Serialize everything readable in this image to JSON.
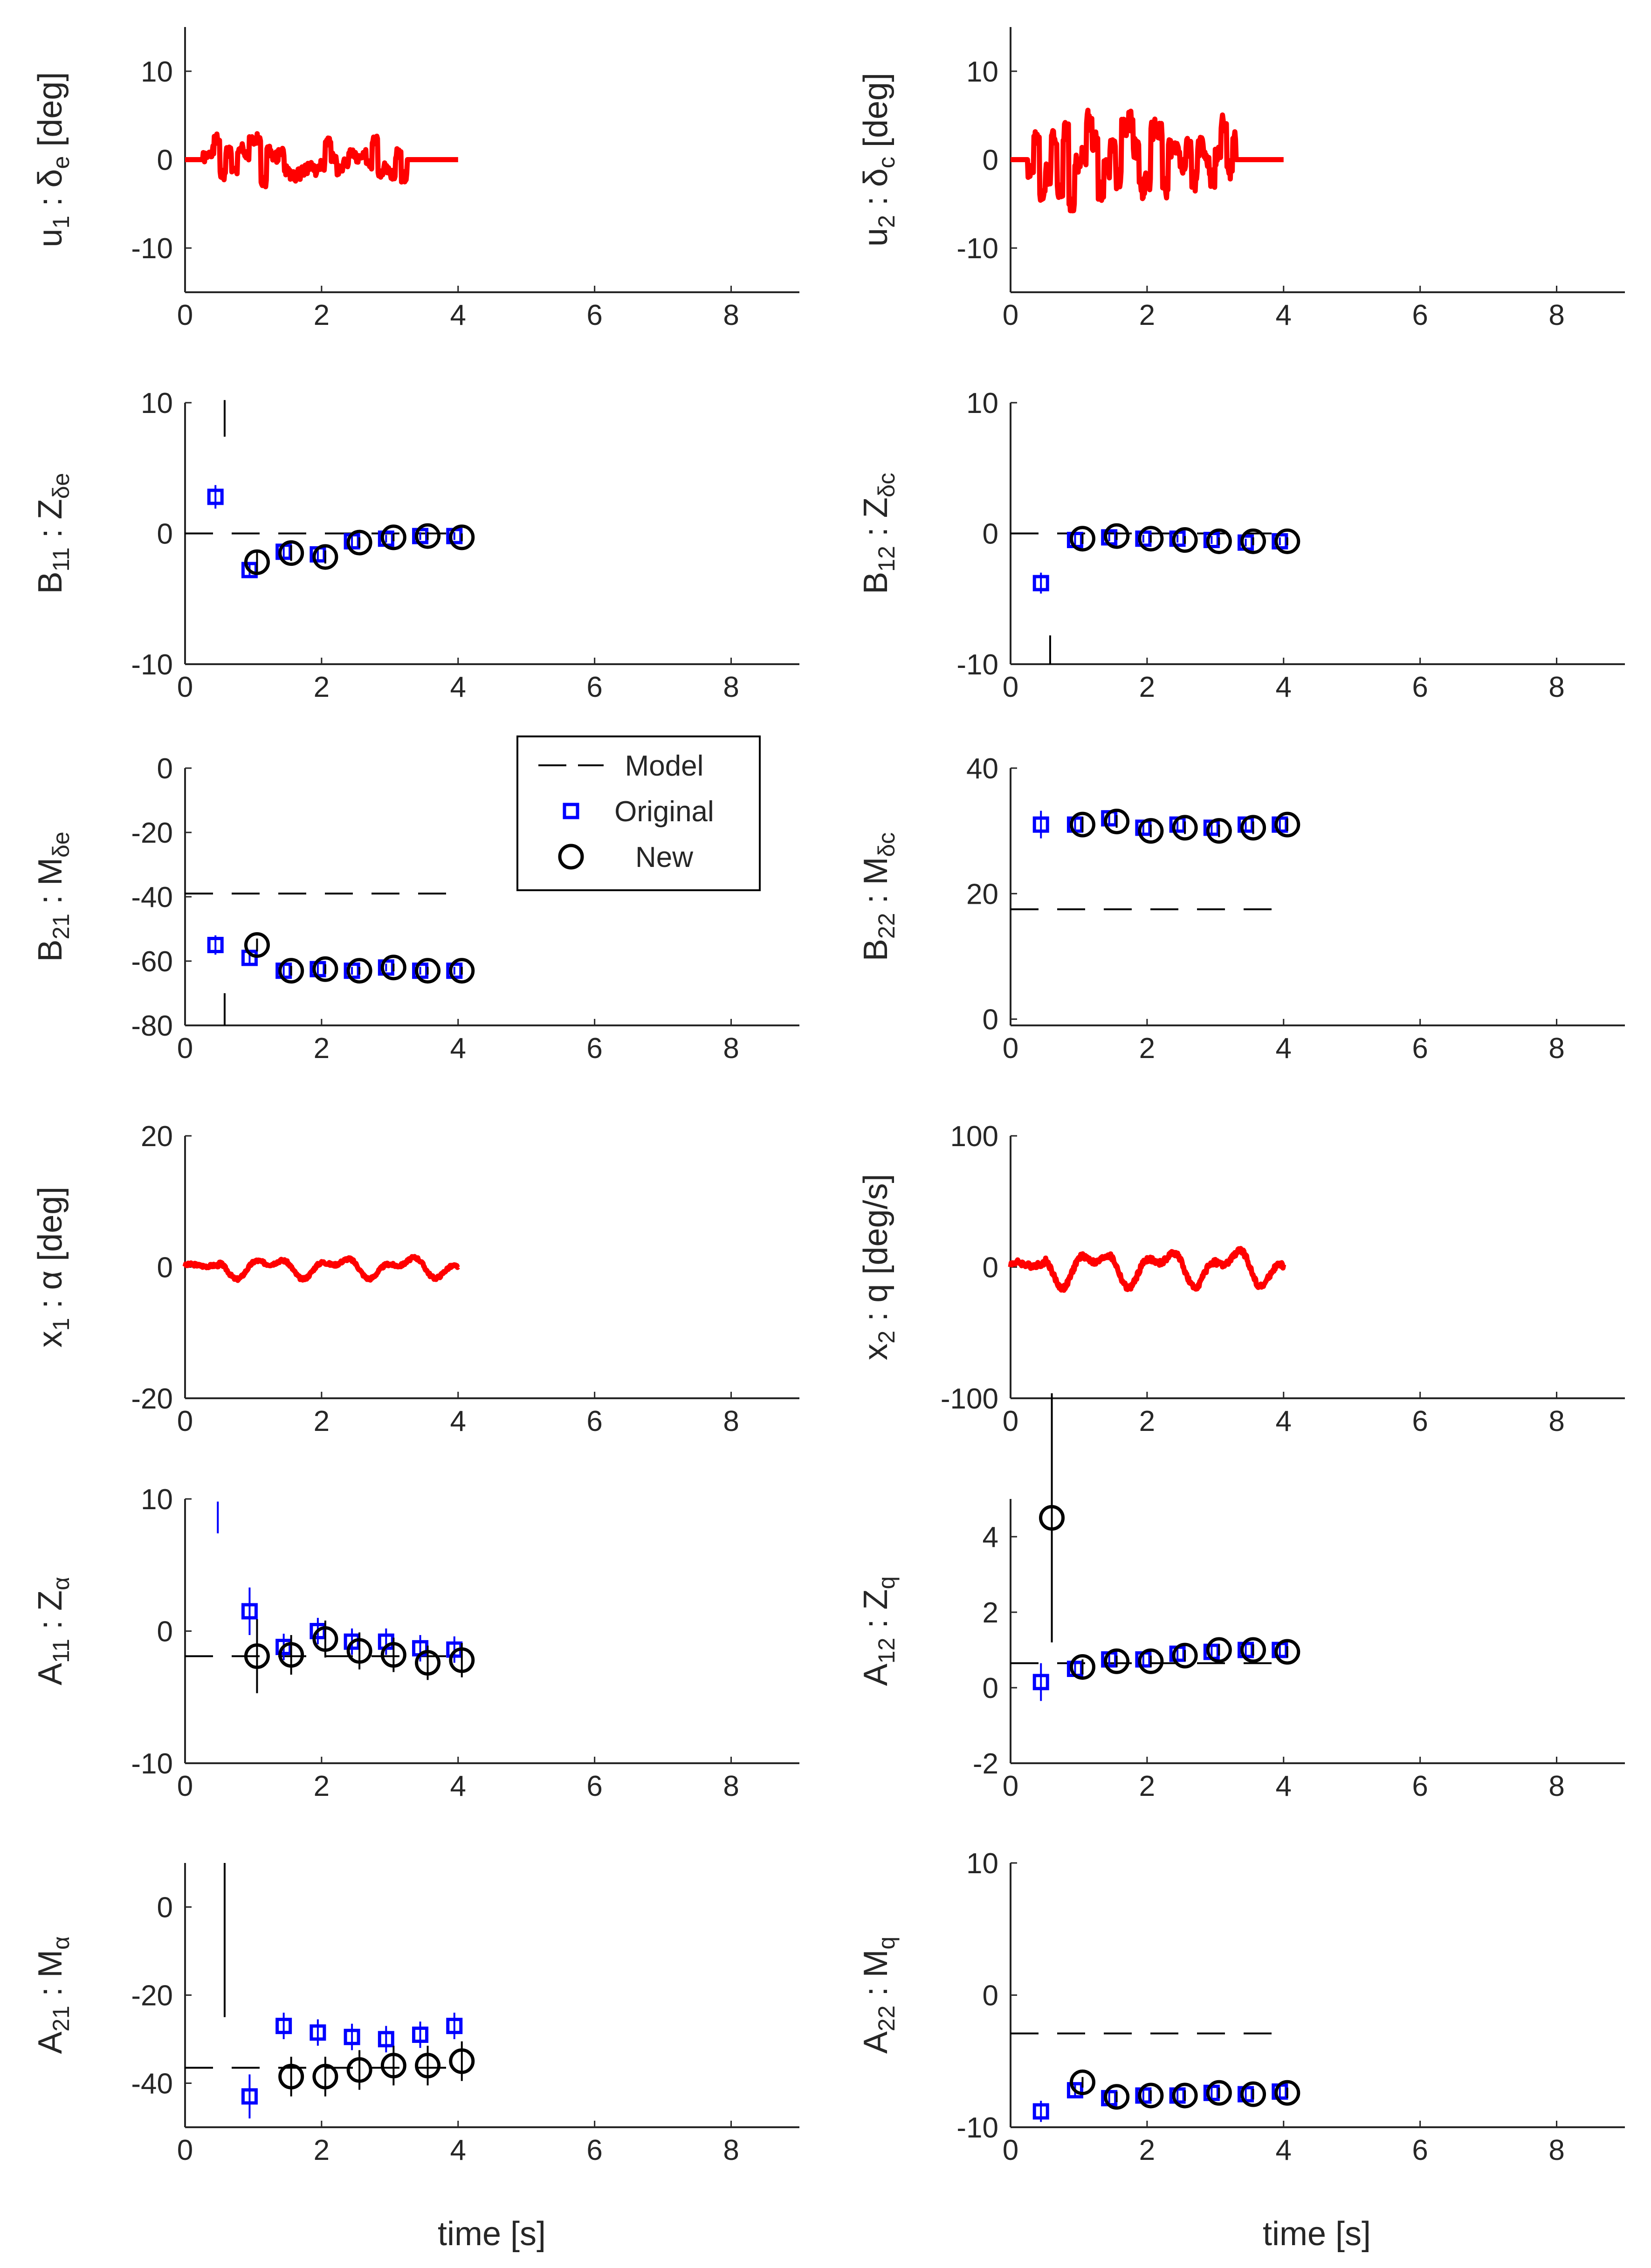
{
  "figure": {
    "xlabel": "time [s]"
  },
  "legend": {
    "items": [
      {
        "label": "Model",
        "style": "dash"
      },
      {
        "label": "Original",
        "style": "square"
      },
      {
        "label": "New",
        "style": "circle"
      }
    ]
  },
  "colors": {
    "signal": "#ff0000",
    "original": "#0000ff",
    "new": "#000000",
    "axis": "#262626"
  },
  "chart_data": [
    {
      "id": "u1",
      "type": "line",
      "ylabel": {
        "main": "u",
        "sub1": "1",
        "mid": " : δ",
        "sub2": "e",
        "tail": " [deg]"
      },
      "xlim": [
        0,
        9
      ],
      "ylim": [
        -15,
        15
      ],
      "xticks": [
        0,
        2,
        4,
        6,
        8
      ],
      "yticks": [
        -10,
        0,
        10
      ],
      "signal": {
        "t0": 0,
        "t1": 4,
        "type": "u",
        "amp": 2.5,
        "seed": 1,
        "hold_from": 3.25
      }
    },
    {
      "id": "u2",
      "type": "line",
      "ylabel": {
        "main": "u",
        "sub1": "2",
        "mid": " : δ",
        "sub2": "c",
        "tail": " [deg]"
      },
      "xlim": [
        0,
        9
      ],
      "ylim": [
        -15,
        15
      ],
      "xticks": [
        0,
        2,
        4,
        6,
        8
      ],
      "yticks": [
        -10,
        0,
        10
      ],
      "signal": {
        "t0": 0,
        "t1": 4,
        "type": "u",
        "amp": 4.8,
        "seed": 2,
        "hold_from": 3.3
      }
    },
    {
      "id": "B11",
      "type": "scatter",
      "ylabel": {
        "main": "B",
        "sub1": "11",
        "mid": " : Z",
        "sub2": "δe",
        "tail": ""
      },
      "xlim": [
        0,
        9
      ],
      "ylim": [
        -10,
        10
      ],
      "xticks": [
        0,
        2,
        4,
        6,
        8
      ],
      "yticks": [
        -10,
        0,
        10
      ],
      "model": {
        "x": [
          0,
          4
        ],
        "y": [
          0
        ]
      },
      "original": {
        "t": [
          0.5,
          1,
          1.5,
          2,
          2.5,
          3,
          3.5,
          4
        ],
        "y": [
          2.8,
          -2.8,
          -1.4,
          -1.6,
          -0.6,
          -0.4,
          -0.2,
          -0.2
        ],
        "err": [
          0.9,
          0.6,
          0.5,
          0.5,
          0.4,
          0.3,
          0.3,
          0.3
        ]
      },
      "new": {
        "t": [
          1,
          1.5,
          2,
          2.5,
          3,
          3.5,
          4
        ],
        "y": [
          -2.2,
          -1.5,
          -1.8,
          -0.7,
          -0.3,
          -0.2,
          -0.3
        ],
        "err": [
          0.9,
          0.6,
          0.5,
          0.4,
          0.3,
          0.3,
          0.3
        ]
      },
      "spikes": [
        {
          "t": 0.58,
          "y0": 7.4,
          "y1": 10.2,
          "color": "new"
        }
      ]
    },
    {
      "id": "B12",
      "type": "scatter",
      "ylabel": {
        "main": "B",
        "sub1": "12",
        "mid": " : Z",
        "sub2": "δc",
        "tail": ""
      },
      "xlim": [
        0,
        9
      ],
      "ylim": [
        -10,
        10
      ],
      "xticks": [
        0,
        2,
        4,
        6,
        8
      ],
      "yticks": [
        -10,
        0,
        10
      ],
      "model": {
        "x": [
          0,
          4
        ],
        "y": [
          0
        ]
      },
      "original": {
        "t": [
          0.5,
          1,
          1.5,
          2,
          2.5,
          3,
          3.5,
          4
        ],
        "y": [
          -3.8,
          -0.5,
          -0.3,
          -0.4,
          -0.4,
          -0.5,
          -0.7,
          -0.6
        ],
        "err": [
          0.8,
          0.4,
          0.3,
          0.3,
          0.3,
          0.3,
          0.3,
          0.3
        ]
      },
      "new": {
        "t": [
          1,
          1.5,
          2,
          2.5,
          3,
          3.5,
          4
        ],
        "y": [
          -0.4,
          -0.2,
          -0.4,
          -0.5,
          -0.6,
          -0.6,
          -0.6
        ],
        "err": [
          0.4,
          0.3,
          0.3,
          0.3,
          0.3,
          0.3,
          0.3
        ]
      },
      "spikes": [
        {
          "t": 0.58,
          "y0": -7.8,
          "y1": -10,
          "color": "new"
        }
      ]
    },
    {
      "id": "B21",
      "type": "scatter",
      "ylabel": {
        "main": "B",
        "sub1": "21",
        "mid": " : M",
        "sub2": "δe",
        "tail": ""
      },
      "xlim": [
        0,
        9
      ],
      "ylim": [
        -80,
        0
      ],
      "xticks": [
        0,
        2,
        4,
        6,
        8
      ],
      "yticks": [
        -80,
        -60,
        -40,
        -20,
        0
      ],
      "model": {
        "x": [
          0,
          4
        ],
        "y": [
          -39
        ]
      },
      "original": {
        "t": [
          0.5,
          1,
          1.5,
          2,
          2.5,
          3,
          3.5,
          4
        ],
        "y": [
          -55,
          -59,
          -63,
          -62.5,
          -63,
          -62,
          -63,
          -63
        ],
        "err": [
          3,
          2,
          1.5,
          1.5,
          1.2,
          1.2,
          1.2,
          1.2
        ]
      },
      "new": {
        "t": [
          1,
          1.5,
          2,
          2.5,
          3,
          3.5,
          4
        ],
        "y": [
          -55,
          -63,
          -62.5,
          -63,
          -62,
          -63,
          -63
        ],
        "err": [
          2,
          1.5,
          1.5,
          1.2,
          1.2,
          1.2,
          1.2
        ]
      },
      "spikes": [
        {
          "t": 0.58,
          "y0": -70,
          "y1": -80,
          "color": "new"
        }
      ]
    },
    {
      "id": "B22",
      "type": "scatter",
      "ylabel": {
        "main": "B",
        "sub1": "22",
        "mid": " : M",
        "sub2": "δc",
        "tail": ""
      },
      "xlim": [
        0,
        9
      ],
      "ylim": [
        -1,
        40
      ],
      "xticks": [
        0,
        2,
        4,
        6,
        8
      ],
      "yticks": [
        0,
        20,
        40
      ],
      "model": {
        "x": [
          0,
          4
        ],
        "y": [
          17.5
        ]
      },
      "original": {
        "t": [
          0.5,
          1,
          1.5,
          2,
          2.5,
          3,
          3.5,
          4
        ],
        "y": [
          31,
          31,
          32,
          30.5,
          31,
          30.5,
          31,
          31
        ],
        "err": [
          2.2,
          1.2,
          1,
          1,
          1,
          1,
          1,
          1
        ]
      },
      "new": {
        "t": [
          1,
          1.5,
          2,
          2.5,
          3,
          3.5,
          4
        ],
        "y": [
          31,
          31.5,
          30,
          30.5,
          30,
          30.5,
          31
        ],
        "err": [
          1.2,
          1,
          1,
          1,
          1,
          1,
          1
        ]
      },
      "spikes": []
    },
    {
      "id": "x1",
      "type": "line",
      "ylabel": {
        "main": "x",
        "sub1": "1",
        "mid": " : α [deg]",
        "sub2": "",
        "tail": ""
      },
      "xlim": [
        0,
        9
      ],
      "ylim": [
        -20,
        20
      ],
      "xticks": [
        0,
        2,
        4,
        6,
        8
      ],
      "yticks": [
        -20,
        0,
        20
      ],
      "signal": {
        "t0": 0,
        "t1": 4,
        "type": "x",
        "amp": 1.6,
        "seed": 3,
        "hold_from": 99
      }
    },
    {
      "id": "x2",
      "type": "line",
      "ylabel": {
        "main": "x",
        "sub1": "2",
        "mid": " : q [deg/s]",
        "sub2": "",
        "tail": ""
      },
      "xlim": [
        0,
        9
      ],
      "ylim": [
        -100,
        100
      ],
      "xticks": [
        0,
        2,
        4,
        6,
        8
      ],
      "yticks": [
        -100,
        0,
        100
      ],
      "signal": {
        "t0": 0,
        "t1": 4,
        "type": "x",
        "amp": 14,
        "seed": 4,
        "hold_from": 99
      }
    },
    {
      "id": "A11",
      "type": "scatter",
      "ylabel": {
        "main": "A",
        "sub1": "11",
        "mid": " : Z",
        "sub2": "α",
        "tail": ""
      },
      "xlim": [
        0,
        9
      ],
      "ylim": [
        -10,
        10
      ],
      "xticks": [
        0,
        2,
        4,
        6,
        8
      ],
      "yticks": [
        -10,
        0,
        10
      ],
      "model": {
        "x": [
          0,
          4
        ],
        "y": [
          -1.9
        ]
      },
      "original": {
        "t": [
          1,
          1.5,
          2,
          2.5,
          3,
          3.5,
          4
        ],
        "y": [
          1.5,
          -1.2,
          0,
          -0.8,
          -0.8,
          -1.3,
          -1.4
        ],
        "err": [
          1.8,
          1,
          1,
          1,
          1,
          1,
          1
        ]
      },
      "new": {
        "t": [
          1,
          1.5,
          2,
          2.5,
          3,
          3.5,
          4
        ],
        "y": [
          -1.9,
          -1.8,
          -0.6,
          -1.5,
          -1.8,
          -2.4,
          -2.2
        ],
        "err": [
          2.8,
          1.5,
          1.4,
          1.4,
          1.3,
          1.3,
          1.3
        ]
      },
      "spikes": [
        {
          "t": 0.48,
          "y0": 7.4,
          "y1": 9.8,
          "color": "original"
        }
      ]
    },
    {
      "id": "A12",
      "type": "scatter",
      "ylabel": {
        "main": "A",
        "sub1": "12",
        "mid": " : Z",
        "sub2": "q",
        "tail": ""
      },
      "xlim": [
        0,
        9
      ],
      "ylim": [
        -2,
        5
      ],
      "xticks": [
        0,
        2,
        4,
        6,
        8
      ],
      "yticks": [
        -2,
        0,
        2,
        4
      ],
      "model": {
        "x": [
          0,
          4
        ],
        "y": [
          0.65
        ]
      },
      "original": {
        "t": [
          0.5,
          1,
          1.5,
          2,
          2.5,
          3,
          3.5,
          4
        ],
        "y": [
          0.15,
          0.5,
          0.75,
          0.75,
          0.9,
          0.95,
          1.0,
          1.0
        ],
        "err": [
          0.5,
          0.2,
          0.15,
          0.15,
          0.15,
          0.15,
          0.15,
          0.15
        ]
      },
      "new": {
        "t": [
          0.55,
          1,
          1.5,
          2,
          2.5,
          3,
          3.5,
          4
        ],
        "y": [
          4.5,
          0.55,
          0.7,
          0.7,
          0.85,
          1.0,
          1.0,
          0.95
        ],
        "err": [
          3.3,
          0.2,
          0.15,
          0.15,
          0.15,
          0.15,
          0.15,
          0.15
        ]
      },
      "spikes": []
    },
    {
      "id": "A21",
      "type": "scatter",
      "ylabel": {
        "main": "A",
        "sub1": "21",
        "mid": " : M",
        "sub2": "α",
        "tail": ""
      },
      "xlim": [
        0,
        9
      ],
      "ylim": [
        -50,
        10
      ],
      "xticks": [
        0,
        2,
        4,
        6,
        8
      ],
      "yticks": [
        -40,
        -20,
        0
      ],
      "model": {
        "x": [
          0,
          4
        ],
        "y": [
          -36.5
        ]
      },
      "original": {
        "t": [
          1,
          1.5,
          2,
          2.5,
          3,
          3.5,
          4
        ],
        "y": [
          -43,
          -27,
          -28.5,
          -29.5,
          -30,
          -29,
          -27
        ],
        "err": [
          5,
          3,
          3,
          3,
          3,
          3,
          3
        ]
      },
      "new": {
        "t": [
          1.5,
          2,
          2.5,
          3,
          3.5,
          4
        ],
        "y": [
          -38.5,
          -38.5,
          -37,
          -36,
          -36,
          -35
        ],
        "err": [
          4.5,
          4.5,
          4.5,
          4.5,
          4.5,
          4.5
        ]
      },
      "spikes": [
        {
          "t": 0.58,
          "y0": -25,
          "y1": 10,
          "color": "new"
        }
      ]
    },
    {
      "id": "A22",
      "type": "scatter",
      "ylabel": {
        "main": "A",
        "sub1": "22",
        "mid": " : M",
        "sub2": "q",
        "tail": ""
      },
      "xlim": [
        0,
        9
      ],
      "ylim": [
        -10,
        10
      ],
      "xticks": [
        0,
        2,
        4,
        6,
        8
      ],
      "yticks": [
        -10,
        0,
        10
      ],
      "model": {
        "x": [
          0,
          4
        ],
        "y": [
          -2.9
        ]
      },
      "original": {
        "t": [
          0.5,
          1,
          1.5,
          2,
          2.5,
          3,
          3.5,
          4
        ],
        "y": [
          -8.8,
          -7.2,
          -7.8,
          -7.6,
          -7.6,
          -7.4,
          -7.5,
          -7.3
        ],
        "err": [
          0.8,
          0.4,
          0.4,
          0.4,
          0.4,
          0.4,
          0.4,
          0.4
        ]
      },
      "new": {
        "t": [
          1,
          1.5,
          2,
          2.5,
          3,
          3.5,
          4
        ],
        "y": [
          -6.6,
          -7.7,
          -7.6,
          -7.6,
          -7.4,
          -7.5,
          -7.4
        ],
        "err": [
          0.4,
          0.4,
          0.4,
          0.4,
          0.4,
          0.4,
          0.4
        ]
      },
      "spikes": []
    }
  ]
}
